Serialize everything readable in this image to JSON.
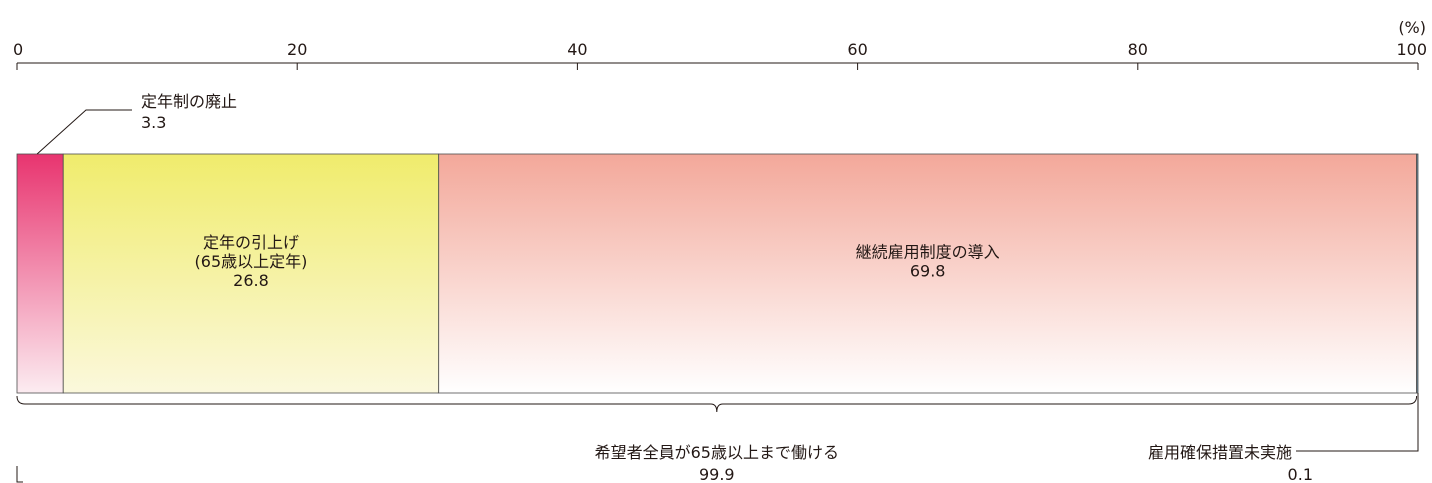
{
  "chart_data": {
    "type": "bar",
    "orientation": "horizontal",
    "stacked": true,
    "unit_label": "(%)",
    "xlim": [
      0,
      100
    ],
    "ticks": [
      0,
      20,
      40,
      60,
      80,
      100
    ],
    "tick_labels": [
      "0",
      "20",
      "40",
      "60",
      "80",
      "100"
    ],
    "segments": [
      {
        "id": "abolish",
        "lines": [
          "定年制の廃止",
          "3.3"
        ],
        "value": 3.3,
        "colors": [
          "#e8346f",
          "#fcecf1"
        ],
        "label_position": "callout-top-left"
      },
      {
        "id": "raise",
        "lines": [
          "定年の引上げ",
          "(65歳以上定年)",
          "26.8"
        ],
        "value": 26.8,
        "colors": [
          "#f0ec6c",
          "#fbf8dc"
        ],
        "label_position": "inside"
      },
      {
        "id": "continue",
        "lines": [
          "継続雇用制度の導入",
          "69.8"
        ],
        "value": 69.8,
        "colors": [
          "#f3a89a",
          "#ffffff"
        ],
        "label_position": "inside"
      },
      {
        "id": "none",
        "lines": [
          "雇用確保措置未実施",
          "0.1"
        ],
        "value": 0.1,
        "colors": [
          "#6c8aa0",
          "#6c8aa0"
        ],
        "label_position": "callout-bottom-right"
      }
    ],
    "bracket": {
      "lines": [
        "希望者全員が65歳以上まで働ける",
        "99.9"
      ],
      "from": 0,
      "to": 99.9
    },
    "grid": false,
    "legend": "none"
  }
}
